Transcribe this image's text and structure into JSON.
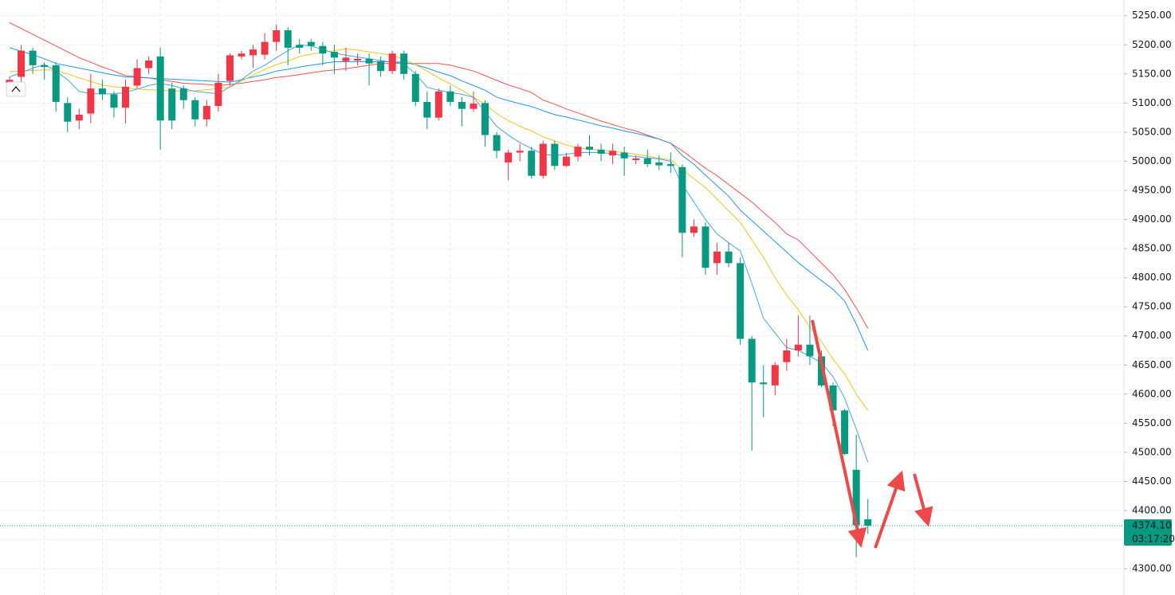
{
  "chart_data": {
    "type": "candlestick",
    "up_color": "#f23645",
    "down_color": "#089981",
    "ylim": [
      4255,
      5277
    ],
    "yticks": [
      {
        "value": 4300,
        "label": "4300.00"
      },
      {
        "value": 4350,
        "label": "4350.00"
      },
      {
        "value": 4400,
        "label": "4400.00"
      },
      {
        "value": 4450,
        "label": "4450.00"
      },
      {
        "value": 4500,
        "label": "4500.00"
      },
      {
        "value": 4550,
        "label": "4550.00"
      },
      {
        "value": 4600,
        "label": "4600.00"
      },
      {
        "value": 4650,
        "label": "4650.00"
      },
      {
        "value": 4700,
        "label": "4700.00"
      },
      {
        "value": 4750,
        "label": "4750.00"
      },
      {
        "value": 4800,
        "label": "4800.00"
      },
      {
        "value": 4850,
        "label": "4850.00"
      },
      {
        "value": 4900,
        "label": "4900.00"
      },
      {
        "value": 4950,
        "label": "4950.00"
      },
      {
        "value": 5000,
        "label": "5000.00"
      },
      {
        "value": 5050,
        "label": "5050.00"
      },
      {
        "value": 5100,
        "label": "5100.00"
      },
      {
        "value": 5150,
        "label": "5150.00"
      },
      {
        "value": 5200,
        "label": "5200.00"
      },
      {
        "value": 5250,
        "label": "5250.00"
      }
    ],
    "grid": true,
    "open": [
      5135,
      5145,
      5190,
      5165,
      5165,
      5100,
      5070,
      5082,
      5125,
      5115,
      5092,
      5130,
      5160,
      5180,
      5125,
      5125,
      5105,
      5072,
      5095,
      5138,
      5180,
      5182,
      5183,
      5205,
      5225,
      5200,
      5205,
      5198,
      5188,
      5172,
      5173,
      5176,
      5172,
      5155,
      5185,
      5150,
      5102,
      5075,
      5120,
      5102,
      5090,
      5100,
      5045,
      4998,
      5015,
      5018,
      4975,
      5030,
      4992,
      5008,
      5025,
      5020,
      5010,
      5015,
      5002,
      5005,
      4998,
      4995,
      4990,
      4877,
      4888,
      4825,
      4845,
      4825,
      4695,
      4620,
      4615,
      4655,
      4675,
      4685,
      4665,
      4615,
      4572,
      4470,
      4385
    ],
    "high": [
      5145,
      5200,
      5195,
      5170,
      5170,
      5110,
      5090,
      5150,
      5140,
      5120,
      5140,
      5175,
      5180,
      5195,
      5135,
      5130,
      5110,
      5105,
      5150,
      5185,
      5190,
      5200,
      5220,
      5235,
      5230,
      5210,
      5210,
      5205,
      5200,
      5195,
      5185,
      5185,
      5180,
      5190,
      5190,
      5155,
      5120,
      5125,
      5130,
      5110,
      5120,
      5105,
      5050,
      5020,
      5030,
      5025,
      5035,
      5035,
      5015,
      5030,
      5045,
      5030,
      5030,
      5025,
      5010,
      5020,
      5010,
      5015,
      4995,
      4900,
      4895,
      4860,
      4860,
      4835,
      4700,
      4650,
      4655,
      4695,
      4735,
      4735,
      4675,
      4620,
      4575,
      4530,
      4420
    ],
    "low": [
      5130,
      5135,
      5150,
      5140,
      5085,
      5050,
      5055,
      5065,
      5105,
      5075,
      5065,
      5125,
      5150,
      5020,
      5055,
      5090,
      5060,
      5060,
      5085,
      5130,
      5175,
      5160,
      5175,
      5190,
      5165,
      5185,
      5190,
      5165,
      5150,
      5155,
      5165,
      5130,
      5145,
      5150,
      5140,
      5095,
      5055,
      5070,
      5095,
      5060,
      5085,
      5025,
      5005,
      4968,
      5000,
      4970,
      4970,
      4985,
      4990,
      5000,
      5010,
      5000,
      4995,
      4975,
      4995,
      4990,
      4985,
      4980,
      4835,
      4870,
      4805,
      4805,
      4818,
      4685,
      4503,
      4560,
      4598,
      4640,
      4665,
      4650,
      4612,
      4545,
      4495,
      4320,
      4360
    ],
    "close": [
      5140,
      5190,
      5165,
      5162,
      5102,
      5068,
      5080,
      5125,
      5115,
      5092,
      5128,
      5160,
      5173,
      5070,
      5070,
      5105,
      5072,
      5095,
      5135,
      5182,
      5185,
      5192,
      5205,
      5225,
      5195,
      5195,
      5198,
      5185,
      5178,
      5178,
      5176,
      5168,
      5155,
      5185,
      5150,
      5102,
      5075,
      5120,
      5102,
      5090,
      5099,
      5045,
      5018,
      5015,
      5018,
      4975,
      5030,
      4992,
      5008,
      5025,
      5020,
      5013,
      5018,
      5005,
      5005,
      4995,
      4993,
      4992,
      4877,
      4888,
      4817,
      4845,
      4825,
      4695,
      4620,
      4617,
      4650,
      4675,
      4685,
      4665,
      4615,
      4572,
      4497,
      4375,
      4374.1
    ],
    "lines": [
      {
        "color": "#f4534f",
        "values": [
          5238,
          5228,
          5218,
          5208,
          5198,
          5188,
          5178,
          5170,
          5162,
          5155,
          5147,
          5145,
          5143,
          5140,
          5137,
          5134,
          5133,
          5132,
          5130,
          5132,
          5134,
          5137,
          5140,
          5144,
          5146,
          5149,
          5152,
          5155,
          5157,
          5159,
          5162,
          5165,
          5168,
          5168,
          5168,
          5168,
          5168,
          5168,
          5165,
          5160,
          5155,
          5147,
          5139,
          5131,
          5125,
          5118,
          5105,
          5098,
          5090,
          5083,
          5076,
          5069,
          5063,
          5057,
          5052,
          5045,
          5038,
          5031,
          5018,
          5003,
          4988,
          4975,
          4960,
          4945,
          4930,
          4912,
          4895,
          4875,
          4865,
          4845,
          4825,
          4805,
          4780,
          4748,
          4713
        ]
      },
      {
        "color": "#2196f3",
        "values": [
          5195,
          5189,
          5183,
          5176,
          5168,
          5164,
          5160,
          5156,
          5152,
          5148,
          5145,
          5144,
          5143,
          5142,
          5141,
          5140,
          5139,
          5138,
          5137,
          5136,
          5140,
          5145,
          5149,
          5155,
          5158,
          5162,
          5165,
          5168,
          5171,
          5171,
          5171,
          5171,
          5171,
          5171,
          5170,
          5166,
          5160,
          5153,
          5147,
          5138,
          5130,
          5122,
          5110,
          5104,
          5099,
          5094,
          5087,
          5080,
          5076,
          5071,
          5066,
          5061,
          5057,
          5052,
          5048,
          5043,
          5038,
          5031,
          5010,
          4995,
          4976,
          4958,
          4940,
          4916,
          4898,
          4880,
          4862,
          4844,
          4826,
          4810,
          4795,
          4780,
          4760,
          4720,
          4675
        ]
      },
      {
        "color": "#f5c518",
        "values": [
          5154,
          5155,
          5156,
          5157,
          5156,
          5150,
          5143,
          5137,
          5131,
          5128,
          5126,
          5124,
          5123,
          5122,
          5121,
          5120,
          5121,
          5123,
          5125,
          5127,
          5138,
          5148,
          5158,
          5166,
          5172,
          5180,
          5184,
          5187,
          5190,
          5193,
          5191,
          5188,
          5185,
          5182,
          5175,
          5166,
          5155,
          5143,
          5133,
          5122,
          5110,
          5098,
          5082,
          5070,
          5060,
          5052,
          5042,
          5035,
          5028,
          5023,
          5021,
          5019,
          5017,
          5015,
          5012,
          5009,
          5005,
          5003,
          4985,
          4970,
          4955,
          4935,
          4915,
          4895,
          4865,
          4835,
          4800,
          4770,
          4745,
          4715,
          4690,
          4660,
          4635,
          4600,
          4572
        ]
      },
      {
        "color": "#42a5f5",
        "values": [
          5145,
          5152,
          5160,
          5166,
          5155,
          5140,
          5120,
          5116,
          5116,
          5116,
          5118,
          5124,
          5130,
          5134,
          5130,
          5125,
          5120,
          5118,
          5116,
          5128,
          5140,
          5155,
          5165,
          5178,
          5190,
          5200,
          5198,
          5192,
          5186,
          5182,
          5179,
          5176,
          5173,
          5170,
          5168,
          5150,
          5127,
          5122,
          5118,
          5115,
          5110,
          5085,
          5060,
          5045,
          5032,
          5022,
          5012,
          5010,
          5012,
          5015,
          5015,
          5015,
          5013,
          5010,
          5008,
          5006,
          5004,
          5000,
          4960,
          4930,
          4900,
          4875,
          4860,
          4846,
          4790,
          4730,
          4705,
          4680,
          4675,
          4665,
          4654,
          4630,
          4593,
          4540,
          4483
        ]
      }
    ],
    "price_line": {
      "value": 4374.1,
      "label": "4374.10"
    },
    "countdown": "03:17:20"
  }
}
